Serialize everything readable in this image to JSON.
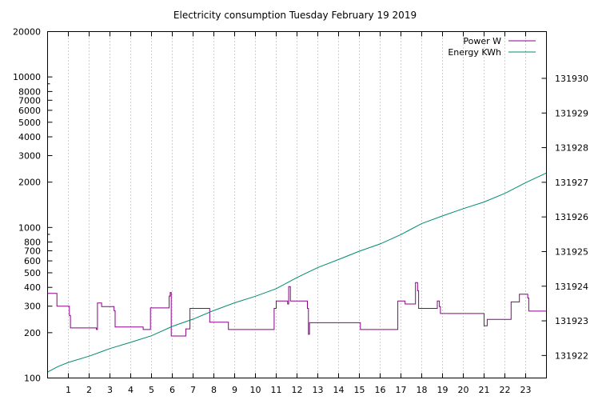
{
  "chart_data": {
    "type": "line",
    "title": "Electricity consumption Tuesday February 19 2019",
    "xlim": [
      0,
      24
    ],
    "x_ticks": [
      1,
      2,
      3,
      4,
      5,
      6,
      7,
      8,
      9,
      10,
      11,
      12,
      13,
      14,
      15,
      16,
      17,
      18,
      19,
      20,
      21,
      22,
      23
    ],
    "y_scale": "log",
    "ylim": [
      100,
      20000
    ],
    "y_ticks": [
      100,
      200,
      300,
      400,
      500,
      600,
      700,
      800,
      1000,
      2000,
      3000,
      4000,
      5000,
      6000,
      7000,
      8000,
      10000,
      20000
    ],
    "y2_scale": "linear",
    "y2lim": [
      131921.35,
      131931.35
    ],
    "y2_ticks": [
      131922,
      131923,
      131924,
      131925,
      131926,
      131927,
      131928,
      131929,
      131930
    ],
    "grid": "vertical dotted at x ticks",
    "legend_position": "top-right",
    "series": [
      {
        "name": "Power W",
        "axis": "y",
        "color": "#8b008b",
        "step": true,
        "points": [
          [
            0,
            365
          ],
          [
            0.45,
            365
          ],
          [
            0.45,
            300
          ],
          [
            1.05,
            300
          ],
          [
            1.05,
            260
          ],
          [
            1.1,
            260
          ],
          [
            1.1,
            215
          ],
          [
            2.35,
            215
          ],
          [
            2.35,
            210
          ],
          [
            2.4,
            210
          ],
          [
            2.4,
            315
          ],
          [
            2.6,
            315
          ],
          [
            2.6,
            298
          ],
          [
            3.2,
            298
          ],
          [
            3.2,
            280
          ],
          [
            3.25,
            280
          ],
          [
            3.25,
            218
          ],
          [
            4.6,
            218
          ],
          [
            4.6,
            210
          ],
          [
            4.95,
            210
          ],
          [
            4.95,
            292
          ],
          [
            5.85,
            292
          ],
          [
            5.85,
            350
          ],
          [
            5.9,
            350
          ],
          [
            5.9,
            370
          ],
          [
            5.95,
            370
          ],
          [
            5.95,
            190
          ],
          [
            6.65,
            190
          ],
          [
            6.65,
            212
          ],
          [
            6.85,
            212
          ],
          [
            6.85,
            290
          ],
          [
            7.8,
            290
          ],
          [
            7.8,
            235
          ],
          [
            8.7,
            235
          ],
          [
            8.7,
            210
          ],
          [
            10.9,
            210
          ],
          [
            10.9,
            290
          ],
          [
            11.0,
            290
          ],
          [
            11.0,
            325
          ],
          [
            11.55,
            325
          ],
          [
            11.55,
            310
          ],
          [
            11.6,
            310
          ],
          [
            11.6,
            405
          ],
          [
            11.68,
            405
          ],
          [
            11.68,
            325
          ],
          [
            12.5,
            325
          ],
          [
            12.5,
            290
          ],
          [
            12.55,
            290
          ],
          [
            12.55,
            195
          ],
          [
            12.6,
            195
          ],
          [
            12.6,
            233
          ],
          [
            15.05,
            233
          ],
          [
            15.05,
            210
          ],
          [
            16.85,
            210
          ],
          [
            16.85,
            325
          ],
          [
            17.2,
            325
          ],
          [
            17.2,
            310
          ],
          [
            17.7,
            310
          ],
          [
            17.7,
            430
          ],
          [
            17.8,
            430
          ],
          [
            17.8,
            380
          ],
          [
            17.85,
            380
          ],
          [
            17.85,
            290
          ],
          [
            18.75,
            290
          ],
          [
            18.75,
            325
          ],
          [
            18.85,
            325
          ],
          [
            18.85,
            298
          ],
          [
            18.9,
            298
          ],
          [
            18.9,
            268
          ],
          [
            21.0,
            268
          ],
          [
            21.0,
            222
          ],
          [
            21.15,
            222
          ],
          [
            21.15,
            245
          ],
          [
            22.3,
            245
          ],
          [
            22.3,
            320
          ],
          [
            22.7,
            320
          ],
          [
            22.7,
            360
          ],
          [
            23.1,
            360
          ],
          [
            23.1,
            340
          ],
          [
            23.15,
            340
          ],
          [
            23.15,
            278
          ],
          [
            24,
            278
          ]
        ]
      },
      {
        "name": "Energy KWh",
        "axis": "y2",
        "color": "#008b71",
        "step": false,
        "points": [
          [
            0,
            131921.52
          ],
          [
            0.5,
            131921.68
          ],
          [
            1,
            131921.8
          ],
          [
            2,
            131921.98
          ],
          [
            3,
            131922.2
          ],
          [
            4,
            131922.38
          ],
          [
            5,
            131922.57
          ],
          [
            6,
            131922.84
          ],
          [
            7,
            131923.05
          ],
          [
            8,
            131923.3
          ],
          [
            9,
            131923.52
          ],
          [
            10,
            131923.71
          ],
          [
            11,
            131923.93
          ],
          [
            12,
            131924.25
          ],
          [
            13,
            131924.54
          ],
          [
            14,
            131924.77
          ],
          [
            15,
            131925.01
          ],
          [
            16,
            131925.22
          ],
          [
            17,
            131925.49
          ],
          [
            18,
            131925.81
          ],
          [
            19,
            131926.03
          ],
          [
            20,
            131926.24
          ],
          [
            21,
            131926.43
          ],
          [
            22,
            131926.68
          ],
          [
            23,
            131926.99
          ],
          [
            24,
            131927.27
          ]
        ]
      }
    ]
  }
}
